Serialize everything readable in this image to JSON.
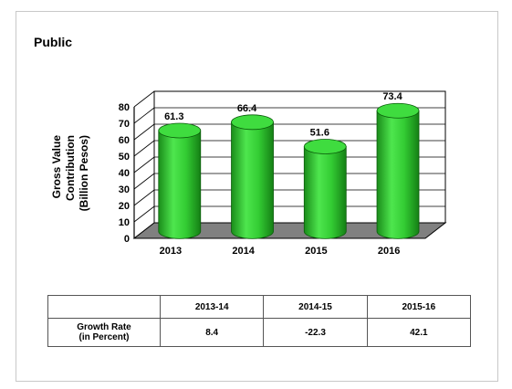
{
  "slide": {
    "title": "Public"
  },
  "chart_data": {
    "type": "bar",
    "title": "",
    "categories": [
      "2013",
      "2014",
      "2015",
      "2016"
    ],
    "series": [
      {
        "values": [
          61.3,
          66.4,
          51.6,
          73.4
        ]
      }
    ],
    "data_labels": [
      "61.3",
      "66.4",
      "51.6",
      "73.4"
    ],
    "ylabel_lines": [
      "Gross Value",
      "Contribution",
      "(Billion Pesos)"
    ],
    "ylim": [
      0,
      80
    ],
    "yticks": [
      0,
      10,
      20,
      30,
      40,
      50,
      60,
      70,
      80
    ],
    "grid": true,
    "bar_color": "#33cc33",
    "floor_color": "#808080",
    "style": "3d-cylinder"
  },
  "growth_table": {
    "headers": [
      "",
      "2013-14",
      "2014-15",
      "2015-16"
    ],
    "row_label": "Growth Rate\n(in Percent)",
    "values": [
      "8.4",
      "-22.3",
      "42.1"
    ]
  }
}
